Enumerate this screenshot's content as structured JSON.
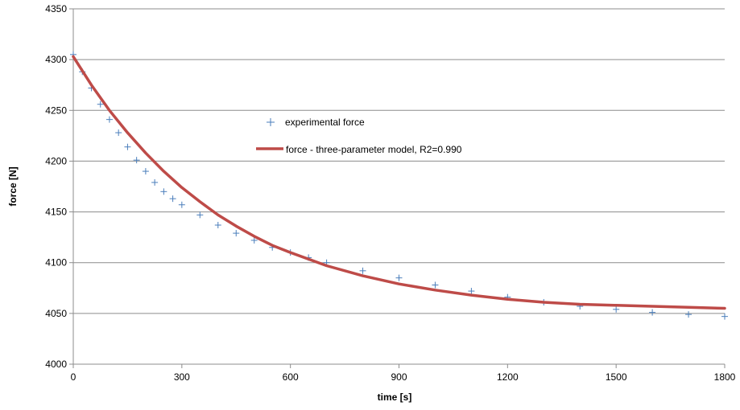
{
  "chart_data": {
    "type": "scatter",
    "title": "",
    "xlabel": "time [s]",
    "ylabel": "force [N]",
    "xlim": [
      0,
      1800
    ],
    "ylim": [
      4000,
      4350
    ],
    "xticks": [
      "0",
      "300",
      "600",
      "900",
      "1200",
      "1500",
      "1800"
    ],
    "yticks": [
      "4000",
      "4050",
      "4100",
      "4150",
      "4200",
      "4250",
      "4300",
      "4350"
    ],
    "grid": "horizontal",
    "legend_position": "center",
    "colors": {
      "experimental": "#4a7ebb",
      "model": "#be4b48"
    },
    "series": [
      {
        "name": "experimental force",
        "type": "scatter",
        "marker": "plus",
        "x": [
          0,
          25,
          50,
          75,
          100,
          125,
          150,
          175,
          200,
          225,
          250,
          275,
          300,
          350,
          400,
          450,
          500,
          550,
          600,
          650,
          700,
          800,
          900,
          1000,
          1100,
          1200,
          1300,
          1400,
          1500,
          1600,
          1700,
          1800
        ],
        "y": [
          4305,
          4288,
          4272,
          4256,
          4241,
          4228,
          4214,
          4201,
          4190,
          4179,
          4170,
          4163,
          4157,
          4147,
          4137,
          4129,
          4122,
          4115,
          4110,
          4105,
          4100,
          4092,
          4085,
          4078,
          4072,
          4066,
          4061,
          4057,
          4054,
          4051,
          4049,
          4047
        ]
      },
      {
        "name": "force - three-parameter model, R2=0.990",
        "type": "line",
        "x": [
          0,
          50,
          100,
          150,
          200,
          250,
          300,
          350,
          400,
          450,
          500,
          550,
          600,
          700,
          800,
          900,
          1000,
          1100,
          1200,
          1300,
          1400,
          1500,
          1600,
          1700,
          1800
        ],
        "y": [
          4303,
          4275,
          4250,
          4228,
          4208,
          4190,
          4174,
          4160,
          4147,
          4136,
          4126,
          4117,
          4110,
          4097,
          4087,
          4079,
          4073,
          4068,
          4064,
          4061,
          4059,
          4058,
          4057,
          4056,
          4055
        ]
      }
    ]
  }
}
